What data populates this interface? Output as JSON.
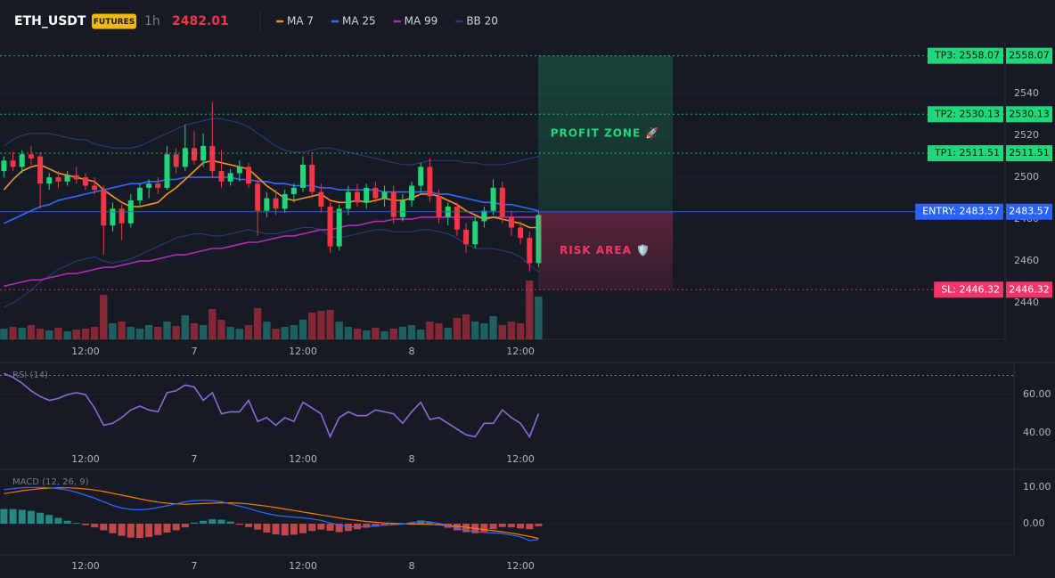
{
  "chart_data": [
    {
      "type": "candlestick",
      "symbol": "ETH_USDT",
      "badge": "FUTURES",
      "interval": "1h",
      "last_price": 2482.01,
      "categories": [
        null,
        null,
        null,
        null,
        null,
        null,
        null,
        null,
        null,
        "12:00",
        null,
        null,
        null,
        null,
        null,
        null,
        null,
        null,
        null,
        null,
        null,
        "7",
        null,
        null,
        null,
        null,
        null,
        null,
        null,
        null,
        null,
        null,
        null,
        "12:00",
        null,
        null,
        null,
        null,
        null,
        null,
        null,
        null,
        null,
        null,
        null,
        "8",
        null,
        null,
        null,
        null,
        null,
        null,
        null,
        null,
        null,
        null,
        null,
        "12:00",
        null,
        null
      ],
      "open": [
        2503,
        2508,
        2505,
        2511,
        2510,
        2497,
        2500,
        2498,
        2501,
        2500,
        2496,
        2494,
        2477,
        2485,
        2478,
        2489,
        2495,
        2497,
        2495,
        2511,
        2505,
        2514,
        2508,
        2515,
        2503,
        2498,
        2502,
        2505,
        2497,
        2484,
        2490,
        2485,
        2492,
        2495,
        2506,
        2493,
        2486,
        2467,
        2485,
        2493,
        2488,
        2495,
        2490,
        2493,
        2481,
        2489,
        2496,
        2505,
        2491,
        2481,
        2486,
        2475,
        2468,
        2479,
        2484,
        2495,
        2481,
        2476,
        2471,
        2459
      ],
      "high": [
        2510,
        2512,
        2513,
        2515,
        2512,
        2502,
        2503,
        2503,
        2505,
        2502,
        2500,
        2496,
        2488,
        2487,
        2492,
        2497,
        2499,
        2500,
        2515,
        2514,
        2525,
        2522,
        2521,
        2536,
        2513,
        2504,
        2508,
        2507,
        2499,
        2493,
        2494,
        2494,
        2497,
        2510,
        2512,
        2497,
        2488,
        2487,
        2496,
        2497,
        2497,
        2498,
        2496,
        2496,
        2492,
        2498,
        2507,
        2509,
        2494,
        2488,
        2488,
        2478,
        2481,
        2486,
        2499,
        2498,
        2484,
        2479,
        2474,
        2484
      ],
      "low": [
        2500,
        2503,
        2502,
        2506,
        2485,
        2494,
        2495,
        2496,
        2497,
        2494,
        2492,
        2463,
        2474,
        2470,
        2476,
        2486,
        2490,
        2492,
        2494,
        2502,
        2503,
        2506,
        2505,
        2500,
        2495,
        2496,
        2498,
        2495,
        2472,
        2481,
        2482,
        2483,
        2488,
        2493,
        2490,
        2483,
        2464,
        2465,
        2482,
        2486,
        2485,
        2488,
        2486,
        2478,
        2479,
        2486,
        2493,
        2488,
        2478,
        2477,
        2472,
        2464,
        2466,
        2476,
        2482,
        2478,
        2472,
        2468,
        2455,
        2457
      ],
      "close": [
        2508,
        2505,
        2511,
        2509,
        2497,
        2500,
        2498,
        2501,
        2499,
        2496,
        2494,
        2477,
        2485,
        2478,
        2489,
        2495,
        2497,
        2495,
        2511,
        2505,
        2514,
        2508,
        2515,
        2503,
        2498,
        2502,
        2505,
        2497,
        2484,
        2490,
        2485,
        2492,
        2495,
        2506,
        2493,
        2486,
        2467,
        2485,
        2493,
        2488,
        2495,
        2490,
        2493,
        2481,
        2489,
        2496,
        2505,
        2491,
        2481,
        2486,
        2475,
        2468,
        2479,
        2484,
        2495,
        2481,
        2476,
        2471,
        2459,
        2482.01
      ],
      "volume": [
        12,
        14,
        13,
        16,
        12,
        10,
        13,
        9,
        11,
        12,
        14,
        50,
        18,
        20,
        14,
        12,
        16,
        14,
        20,
        15,
        27,
        18,
        16,
        34,
        22,
        14,
        12,
        16,
        35,
        20,
        12,
        14,
        16,
        22,
        30,
        32,
        33,
        20,
        14,
        12,
        10,
        13,
        9,
        12,
        14,
        16,
        11,
        20,
        18,
        13,
        24,
        28,
        20,
        18,
        26,
        16,
        20,
        18,
        66,
        48
      ],
      "up_color": "#26a69a",
      "down_color": "#f23645",
      "last_color": "#f23645",
      "series": [
        {
          "name": "MA 7",
          "color": "#f7931a",
          "values": [
            2494,
            2499,
            2503,
            2505,
            2506,
            2504,
            2502,
            2501,
            2500,
            2499,
            2498,
            2494,
            2491,
            2488,
            2486,
            2486,
            2487,
            2488,
            2492,
            2495,
            2499,
            2503,
            2507,
            2508,
            2507,
            2506,
            2505,
            2504,
            2500,
            2496,
            2493,
            2490,
            2489,
            2490,
            2491,
            2492,
            2489,
            2488,
            2488,
            2489,
            2488,
            2489,
            2490,
            2489,
            2489,
            2490,
            2492,
            2492,
            2491,
            2489,
            2487,
            2484,
            2482,
            2480,
            2481,
            2480,
            2479,
            2478,
            2476,
            2476
          ]
        },
        {
          "name": "MA 25",
          "color": "#2f6bff",
          "values": [
            2478,
            2480,
            2482,
            2484,
            2486,
            2487,
            2489,
            2490,
            2491,
            2492,
            2493,
            2494,
            2495,
            2496,
            2497,
            2497,
            2498,
            2498,
            2499,
            2499,
            2500,
            2500,
            2500,
            2500,
            2500,
            2500,
            2499,
            2499,
            2498,
            2498,
            2497,
            2497,
            2496,
            2496,
            2496,
            2495,
            2495,
            2494,
            2494,
            2494,
            2494,
            2494,
            2493,
            2493,
            2493,
            2493,
            2493,
            2493,
            2492,
            2492,
            2491,
            2490,
            2489,
            2488,
            2488,
            2487,
            2487,
            2486,
            2485,
            2484
          ]
        },
        {
          "name": "MA 99",
          "color": "#b02cb5",
          "values": [
            2448,
            2449,
            2450,
            2451,
            2451,
            2452,
            2453,
            2454,
            2454,
            2455,
            2456,
            2457,
            2457,
            2458,
            2459,
            2460,
            2460,
            2461,
            2462,
            2463,
            2463,
            2464,
            2465,
            2466,
            2466,
            2467,
            2468,
            2469,
            2469,
            2470,
            2471,
            2472,
            2472,
            2473,
            2474,
            2475,
            2475,
            2476,
            2477,
            2477,
            2478,
            2479,
            2479,
            2480,
            2480,
            2480,
            2481,
            2481,
            2481,
            2481,
            2481,
            2481,
            2481,
            2481,
            2481,
            2481,
            2481,
            2481,
            2481,
            2481
          ]
        }
      ],
      "band": {
        "name": "BB 20",
        "color": "#2a3f86",
        "upper": [
          2515,
          2518,
          2520,
          2521,
          2521,
          2521,
          2520,
          2519,
          2518,
          2518,
          2516,
          2515,
          2514,
          2514,
          2514,
          2515,
          2517,
          2519,
          2521,
          2523,
          2525,
          2526,
          2527,
          2528,
          2528,
          2527,
          2526,
          2524,
          2521,
          2518,
          2515,
          2513,
          2512,
          2512,
          2513,
          2514,
          2514,
          2513,
          2512,
          2511,
          2510,
          2509,
          2508,
          2507,
          2506,
          2506,
          2507,
          2508,
          2508,
          2508,
          2508,
          2507,
          2507,
          2506,
          2506,
          2506,
          2507,
          2508,
          2509,
          2510
        ],
        "lower": [
          2438,
          2440,
          2443,
          2446,
          2450,
          2453,
          2456,
          2458,
          2460,
          2461,
          2462,
          2460,
          2459,
          2460,
          2461,
          2463,
          2465,
          2467,
          2469,
          2471,
          2472,
          2473,
          2473,
          2472,
          2472,
          2473,
          2474,
          2475,
          2474,
          2473,
          2473,
          2474,
          2475,
          2476,
          2476,
          2475,
          2472,
          2471,
          2472,
          2473,
          2474,
          2475,
          2475,
          2474,
          2474,
          2474,
          2475,
          2475,
          2474,
          2473,
          2471,
          2468,
          2466,
          2466,
          2466,
          2465,
          2464,
          2462,
          2458,
          2455
        ]
      },
      "ylim": [
        2422.6,
        2564.3
      ],
      "yticks": [
        2440,
        2460,
        2480,
        2500,
        2520,
        2540
      ],
      "grid": true,
      "levels": [
        {
          "label": "TP3: 2558.07",
          "value": 2558.07,
          "color": "#22d67a",
          "text_color": "#0b1a12",
          "style": "dotted"
        },
        {
          "label": "TP2: 2530.13",
          "value": 2530.13,
          "color": "#22d67a",
          "text_color": "#0b1a12",
          "style": "dotted"
        },
        {
          "label": "TP1: 2511.51",
          "value": 2511.51,
          "color": "#22d67a",
          "text_color": "#0b1a12",
          "style": "dotted"
        },
        {
          "label": "ENTRY: 2483.57",
          "value": 2483.57,
          "color": "#2962ff",
          "text_color": "#ffffff",
          "style": "solid"
        },
        {
          "label": "SL: 2446.32",
          "value": 2446.32,
          "color": "#f23669",
          "text_color": "#ffffff",
          "style": "dotted"
        }
      ],
      "zones": [
        {
          "label": "PROFIT ZONE 🚀",
          "color": "#22d67a"
        },
        {
          "label": "RISK AREA 🛡️",
          "color": "#f23669"
        }
      ]
    },
    {
      "type": "line",
      "title": "RSI (14)",
      "color": "#8e6ad6",
      "categories": [
        null,
        null,
        null,
        null,
        null,
        null,
        null,
        null,
        null,
        "12:00",
        null,
        null,
        null,
        null,
        null,
        null,
        null,
        null,
        null,
        null,
        null,
        "7",
        null,
        null,
        null,
        null,
        null,
        null,
        null,
        null,
        null,
        null,
        null,
        "12:00",
        null,
        null,
        null,
        null,
        null,
        null,
        null,
        null,
        null,
        null,
        null,
        "8",
        null,
        null,
        null,
        null,
        null,
        null,
        null,
        null,
        null,
        null,
        null,
        "12:00",
        null,
        null
      ],
      "values": [
        71,
        69,
        66,
        62,
        59,
        57,
        58,
        60,
        61,
        60,
        53,
        44,
        45,
        48,
        52,
        54,
        52,
        51,
        61,
        62,
        65,
        64,
        57,
        61,
        50,
        51,
        51,
        57,
        46,
        48,
        44,
        48,
        46,
        56,
        53,
        50,
        38,
        48,
        51,
        49,
        49,
        52,
        51,
        50,
        45,
        51,
        56,
        47,
        48,
        45,
        42,
        39,
        38,
        45,
        45,
        52,
        48,
        45,
        38,
        50
      ],
      "ylim": [
        21.9,
        76.3
      ],
      "yticks": [
        {
          "value": 40,
          "label": "40.00"
        },
        {
          "value": 60,
          "label": "60.00"
        }
      ],
      "levels": [
        70
      ]
    },
    {
      "type": "macd",
      "title": "MACD (12, 26, 9)",
      "categories": [
        null,
        null,
        null,
        null,
        null,
        null,
        null,
        null,
        null,
        "12:00",
        null,
        null,
        null,
        null,
        null,
        null,
        null,
        null,
        null,
        null,
        null,
        "7",
        null,
        null,
        null,
        null,
        null,
        null,
        null,
        null,
        null,
        null,
        null,
        "12:00",
        null,
        null,
        null,
        null,
        null,
        null,
        null,
        null,
        null,
        null,
        null,
        "8",
        null,
        null,
        null,
        null,
        null,
        null,
        null,
        null,
        null,
        null,
        null,
        "12:00",
        null,
        null
      ],
      "histogram": [
        4.0,
        4.0,
        3.8,
        3.5,
        3.0,
        2.4,
        1.6,
        0.8,
        0.2,
        -0.4,
        -1.0,
        -1.8,
        -2.6,
        -3.3,
        -3.8,
        -3.9,
        -3.6,
        -3.1,
        -2.4,
        -1.8,
        -1.0,
        0.3,
        0.8,
        1.2,
        1.1,
        0.6,
        -0.3,
        -0.9,
        -1.6,
        -2.4,
        -2.9,
        -3.2,
        -3.0,
        -2.6,
        -2.0,
        -1.6,
        -1.9,
        -2.3,
        -2.0,
        -1.5,
        -1.1,
        -0.8,
        -0.5,
        -0.3,
        -0.1,
        0.4,
        0.9,
        0.5,
        -0.4,
        -1.1,
        -1.8,
        -2.3,
        -2.6,
        -2.2,
        -1.5,
        -0.9,
        -1.0,
        -1.3,
        -1.5,
        -0.7
      ],
      "up_color": "#26a69a",
      "down_color": "#ef5350",
      "macd": {
        "color": "#2f6bff",
        "values": [
          9.3,
          9.6,
          9.8,
          9.9,
          9.9,
          9.8,
          9.6,
          9.2,
          8.6,
          7.8,
          7.0,
          6.0,
          5.0,
          4.3,
          3.9,
          3.8,
          4.0,
          4.4,
          4.9,
          5.4,
          6.0,
          6.3,
          6.4,
          6.3,
          6.0,
          5.4,
          4.8,
          4.2,
          3.4,
          2.8,
          2.3,
          2.0,
          1.8,
          1.6,
          1.3,
          0.9,
          0.2,
          -0.4,
          -0.8,
          -0.9,
          -0.8,
          -0.6,
          -0.4,
          -0.3,
          -0.1,
          0.3,
          0.6,
          0.5,
          0.1,
          -0.5,
          -1.2,
          -1.8,
          -2.2,
          -2.4,
          -2.5,
          -2.7,
          -3.1,
          -3.6,
          -4.6,
          -4.3
        ]
      },
      "signal": {
        "color": "#f57c00",
        "values": [
          8.2,
          8.6,
          9.0,
          9.3,
          9.6,
          9.7,
          9.8,
          9.8,
          9.7,
          9.5,
          9.2,
          8.8,
          8.3,
          7.8,
          7.3,
          6.8,
          6.3,
          5.9,
          5.6,
          5.4,
          5.3,
          5.4,
          5.5,
          5.6,
          5.7,
          5.7,
          5.6,
          5.4,
          5.1,
          4.8,
          4.4,
          4.0,
          3.6,
          3.2,
          2.8,
          2.4,
          2.0,
          1.6,
          1.2,
          0.9,
          0.6,
          0.4,
          0.2,
          0.1,
          0.0,
          -0.1,
          -0.1,
          -0.2,
          -0.3,
          -0.5,
          -0.7,
          -1.0,
          -1.3,
          -1.6,
          -1.9,
          -2.2,
          -2.6,
          -3.0,
          -3.5,
          -4.0
        ]
      },
      "ylim": [
        -8.5,
        14.6
      ],
      "yticks": [
        {
          "value": 10,
          "label": "10.00"
        },
        {
          "value": 0,
          "label": "0.00"
        }
      ]
    }
  ]
}
